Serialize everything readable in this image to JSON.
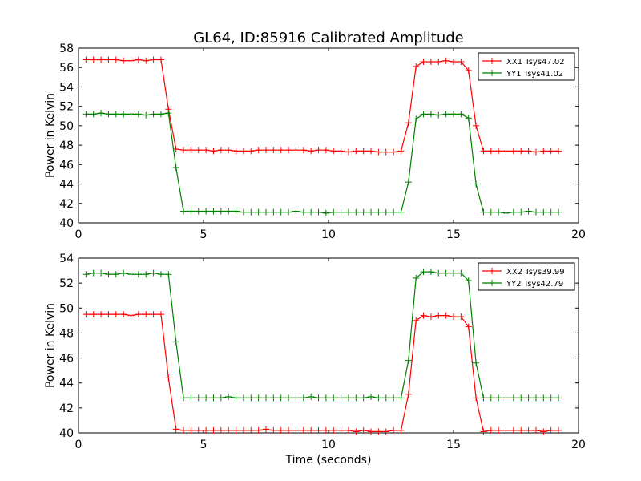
{
  "chart_data": [
    {
      "type": "line",
      "title": "GL64, ID:85916 Calibrated Amplitude",
      "xlabel": "",
      "ylabel": "Power in Kelvin",
      "xlim": [
        0,
        20
      ],
      "ylim": [
        40,
        58
      ],
      "xticks": [
        0,
        5,
        10,
        15,
        20
      ],
      "yticks": [
        40,
        42,
        44,
        46,
        48,
        50,
        52,
        54,
        56,
        58
      ],
      "grid": false,
      "legend": "top-right",
      "series": [
        {
          "name": "XX1 Tsys47.02",
          "color": "#ff0000",
          "x": [
            0.3,
            0.6,
            0.9,
            1.2,
            1.5,
            1.8,
            2.1,
            2.4,
            2.7,
            3.0,
            3.3,
            3.6,
            3.9,
            4.2,
            4.5,
            4.8,
            5.1,
            5.4,
            5.7,
            6.0,
            6.3,
            6.6,
            6.9,
            7.2,
            7.5,
            7.8,
            8.1,
            8.4,
            8.7,
            9.0,
            9.3,
            9.6,
            9.9,
            10.2,
            10.5,
            10.8,
            11.1,
            11.4,
            11.7,
            12.0,
            12.3,
            12.6,
            12.9,
            13.2,
            13.5,
            13.8,
            14.1,
            14.4,
            14.7,
            15.0,
            15.3,
            15.6,
            15.9,
            16.2,
            16.5,
            16.8,
            17.1,
            17.4,
            17.7,
            18.0,
            18.3,
            18.6,
            18.9,
            19.2
          ],
          "y": [
            56.8,
            56.8,
            56.8,
            56.8,
            56.8,
            56.7,
            56.7,
            56.8,
            56.7,
            56.8,
            56.8,
            51.7,
            47.6,
            47.5,
            47.5,
            47.5,
            47.5,
            47.4,
            47.5,
            47.5,
            47.4,
            47.4,
            47.4,
            47.5,
            47.5,
            47.5,
            47.5,
            47.5,
            47.5,
            47.5,
            47.4,
            47.5,
            47.5,
            47.4,
            47.4,
            47.3,
            47.4,
            47.4,
            47.4,
            47.3,
            47.3,
            47.3,
            47.4,
            50.3,
            56.1,
            56.6,
            56.6,
            56.6,
            56.7,
            56.6,
            56.6,
            55.7,
            50.0,
            47.4,
            47.4,
            47.4,
            47.4,
            47.4,
            47.4,
            47.4,
            47.3,
            47.4,
            47.4,
            47.4
          ]
        },
        {
          "name": "YY1 Tsys41.02",
          "color": "#008000",
          "x": [
            0.3,
            0.6,
            0.9,
            1.2,
            1.5,
            1.8,
            2.1,
            2.4,
            2.7,
            3.0,
            3.3,
            3.6,
            3.9,
            4.2,
            4.5,
            4.8,
            5.1,
            5.4,
            5.7,
            6.0,
            6.3,
            6.6,
            6.9,
            7.2,
            7.5,
            7.8,
            8.1,
            8.4,
            8.7,
            9.0,
            9.3,
            9.6,
            9.9,
            10.2,
            10.5,
            10.8,
            11.1,
            11.4,
            11.7,
            12.0,
            12.3,
            12.6,
            12.9,
            13.2,
            13.5,
            13.8,
            14.1,
            14.4,
            14.7,
            15.0,
            15.3,
            15.6,
            15.9,
            16.2,
            16.5,
            16.8,
            17.1,
            17.4,
            17.7,
            18.0,
            18.3,
            18.6,
            18.9,
            19.2
          ],
          "y": [
            51.2,
            51.2,
            51.3,
            51.2,
            51.2,
            51.2,
            51.2,
            51.2,
            51.1,
            51.2,
            51.2,
            51.3,
            45.7,
            41.2,
            41.2,
            41.2,
            41.2,
            41.2,
            41.2,
            41.2,
            41.2,
            41.1,
            41.1,
            41.1,
            41.1,
            41.1,
            41.1,
            41.1,
            41.2,
            41.1,
            41.1,
            41.1,
            41.0,
            41.1,
            41.1,
            41.1,
            41.1,
            41.1,
            41.1,
            41.1,
            41.1,
            41.1,
            41.1,
            44.2,
            50.7,
            51.2,
            51.2,
            51.1,
            51.2,
            51.2,
            51.2,
            50.8,
            44.0,
            41.1,
            41.1,
            41.1,
            41.0,
            41.1,
            41.1,
            41.2,
            41.1,
            41.1,
            41.1,
            41.1
          ]
        }
      ]
    },
    {
      "type": "line",
      "title": "",
      "xlabel": "Time (seconds)",
      "ylabel": "Power in Kelvin",
      "xlim": [
        0,
        20
      ],
      "ylim": [
        40,
        54
      ],
      "xticks": [
        0,
        5,
        10,
        15,
        20
      ],
      "yticks": [
        40,
        42,
        44,
        46,
        48,
        50,
        52,
        54
      ],
      "grid": false,
      "legend": "top-right",
      "series": [
        {
          "name": "XX2 Tsys39.99",
          "color": "#ff0000",
          "x": [
            0.3,
            0.6,
            0.9,
            1.2,
            1.5,
            1.8,
            2.1,
            2.4,
            2.7,
            3.0,
            3.3,
            3.6,
            3.9,
            4.2,
            4.5,
            4.8,
            5.1,
            5.4,
            5.7,
            6.0,
            6.3,
            6.6,
            6.9,
            7.2,
            7.5,
            7.8,
            8.1,
            8.4,
            8.7,
            9.0,
            9.3,
            9.6,
            9.9,
            10.2,
            10.5,
            10.8,
            11.1,
            11.4,
            11.7,
            12.0,
            12.3,
            12.6,
            12.9,
            13.2,
            13.5,
            13.8,
            14.1,
            14.4,
            14.7,
            15.0,
            15.3,
            15.6,
            15.9,
            16.2,
            16.5,
            16.8,
            17.1,
            17.4,
            17.7,
            18.0,
            18.3,
            18.6,
            18.9,
            19.2
          ],
          "y": [
            49.5,
            49.5,
            49.5,
            49.5,
            49.5,
            49.5,
            49.4,
            49.5,
            49.5,
            49.5,
            49.5,
            44.4,
            40.3,
            40.2,
            40.2,
            40.2,
            40.2,
            40.2,
            40.2,
            40.2,
            40.2,
            40.2,
            40.2,
            40.2,
            40.3,
            40.2,
            40.2,
            40.2,
            40.2,
            40.2,
            40.2,
            40.2,
            40.2,
            40.2,
            40.2,
            40.2,
            40.1,
            40.2,
            40.1,
            40.1,
            40.1,
            40.2,
            40.2,
            43.1,
            49.0,
            49.4,
            49.3,
            49.4,
            49.4,
            49.3,
            49.3,
            48.5,
            42.8,
            40.1,
            40.2,
            40.2,
            40.2,
            40.2,
            40.2,
            40.2,
            40.2,
            40.1,
            40.2,
            40.2
          ]
        },
        {
          "name": "YY2 Tsys42.79",
          "color": "#008000",
          "x": [
            0.3,
            0.6,
            0.9,
            1.2,
            1.5,
            1.8,
            2.1,
            2.4,
            2.7,
            3.0,
            3.3,
            3.6,
            3.9,
            4.2,
            4.5,
            4.8,
            5.1,
            5.4,
            5.7,
            6.0,
            6.3,
            6.6,
            6.9,
            7.2,
            7.5,
            7.8,
            8.1,
            8.4,
            8.7,
            9.0,
            9.3,
            9.6,
            9.9,
            10.2,
            10.5,
            10.8,
            11.1,
            11.4,
            11.7,
            12.0,
            12.3,
            12.6,
            12.9,
            13.2,
            13.5,
            13.8,
            14.1,
            14.4,
            14.7,
            15.0,
            15.3,
            15.6,
            15.9,
            16.2,
            16.5,
            16.8,
            17.1,
            17.4,
            17.7,
            18.0,
            18.3,
            18.6,
            18.9,
            19.2
          ],
          "y": [
            52.7,
            52.8,
            52.8,
            52.7,
            52.7,
            52.8,
            52.7,
            52.7,
            52.7,
            52.8,
            52.7,
            52.7,
            47.3,
            42.8,
            42.8,
            42.8,
            42.8,
            42.8,
            42.8,
            42.9,
            42.8,
            42.8,
            42.8,
            42.8,
            42.8,
            42.8,
            42.8,
            42.8,
            42.8,
            42.8,
            42.9,
            42.8,
            42.8,
            42.8,
            42.8,
            42.8,
            42.8,
            42.8,
            42.9,
            42.8,
            42.8,
            42.8,
            42.8,
            45.8,
            52.4,
            52.9,
            52.9,
            52.8,
            52.8,
            52.8,
            52.8,
            52.2,
            45.6,
            42.8,
            42.8,
            42.8,
            42.8,
            42.8,
            42.8,
            42.8,
            42.8,
            42.8,
            42.8,
            42.8
          ]
        }
      ]
    }
  ]
}
